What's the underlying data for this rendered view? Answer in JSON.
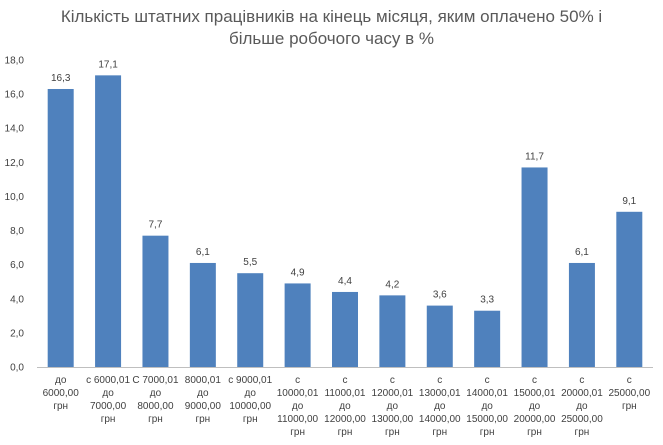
{
  "chart_data": {
    "type": "bar",
    "title_lines": [
      "Кількість штатних працівників на кінець місяця, яким оплачено 50% і",
      "більше робочого часу в %"
    ],
    "categories": [
      [
        "до",
        "6000,00",
        "грн"
      ],
      [
        "с 6000,01",
        "до",
        "7000,00",
        "грн"
      ],
      [
        "С 7000,01",
        "до",
        "8000,00",
        "грн"
      ],
      [
        "8000,01",
        "до",
        "9000,00",
        "грн"
      ],
      [
        "с 9000,01",
        "до",
        "10000,00",
        "грн"
      ],
      [
        "с",
        "10000,01",
        "до",
        "11000,00",
        "грн"
      ],
      [
        "с",
        "11000,01",
        "до",
        "12000,00",
        "грн"
      ],
      [
        "с",
        "12000,01",
        "до",
        "13000,00",
        "грн"
      ],
      [
        "с",
        "13000,01",
        "до",
        "14000,00",
        "грн"
      ],
      [
        "с",
        "14000,01",
        "до",
        "15000,00",
        "грн"
      ],
      [
        "с",
        "15000,01",
        "до",
        "20000,00",
        "грн"
      ],
      [
        "с",
        "20000,01",
        "до",
        "25000,00",
        "грн"
      ],
      [
        "с",
        "25000,00",
        "грн"
      ]
    ],
    "values": [
      16.3,
      17.1,
      7.7,
      6.1,
      5.5,
      4.9,
      4.4,
      4.2,
      3.6,
      3.3,
      11.7,
      6.1,
      9.1
    ],
    "value_labels": [
      "16,3",
      "17,1",
      "7,7",
      "6,1",
      "5,5",
      "4,9",
      "4,4",
      "4,2",
      "3,6",
      "3,3",
      "11,7",
      "6,1",
      "9,1"
    ],
    "yticks": [
      "0,0",
      "2,0",
      "4,0",
      "6,0",
      "8,0",
      "10,0",
      "12,0",
      "14,0",
      "16,0",
      "18,0"
    ],
    "ylim": [
      0,
      18
    ],
    "grid": false,
    "bar_color": "#4f81bd",
    "axis_color": "#bfbfbf"
  }
}
